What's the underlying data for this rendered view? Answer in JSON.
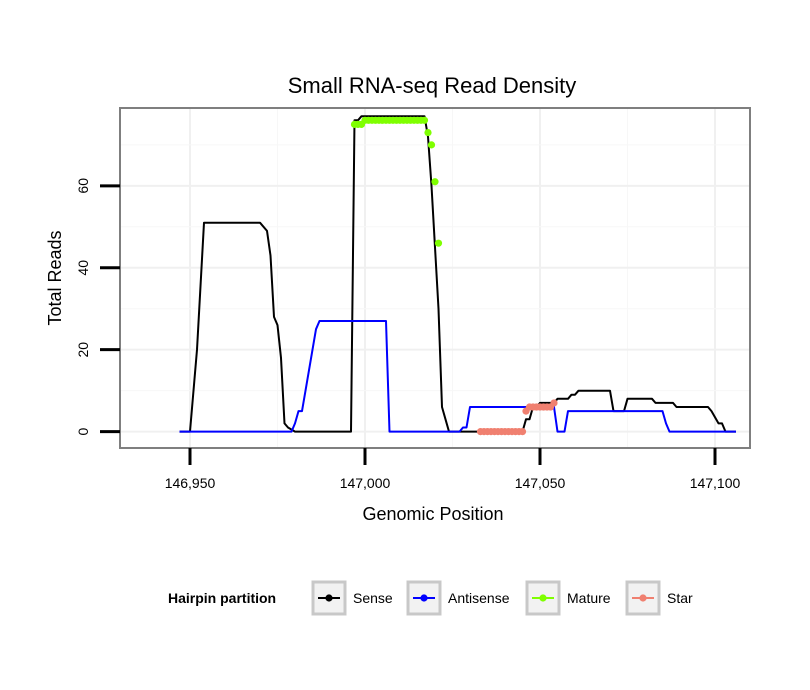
{
  "chart_data": {
    "type": "line",
    "title": "Small RNA-seq Read Density",
    "xlabel": "Genomic Position",
    "ylabel": "Total Reads",
    "xlim": [
      146930,
      147110
    ],
    "ylim": [
      -4,
      79
    ],
    "x_ticks": [
      146950,
      147000,
      147050,
      147100
    ],
    "x_tick_labels": [
      "146,950",
      "147,000",
      "147,050",
      "147,100"
    ],
    "y_ticks": [
      0,
      20,
      40,
      60
    ],
    "y_tick_labels": [
      "0",
      "20",
      "40",
      "60"
    ],
    "grid": true,
    "legend": {
      "title": "Hairpin partition",
      "placement": "bottom",
      "entries": [
        {
          "name": "Sense",
          "color": "#000000"
        },
        {
          "name": "Antisense",
          "color": "#0000ff"
        },
        {
          "name": "Mature",
          "color": "#7fff00"
        },
        {
          "name": "Star",
          "color": "#f08070"
        }
      ]
    },
    "series": [
      {
        "name": "Sense",
        "color": "#000000",
        "style": "line",
        "x": [
          146947,
          146950,
          146952,
          146954,
          146960,
          146970,
          146972,
          146973,
          146974,
          146975,
          146976,
          146977,
          146978,
          146980,
          146996,
          146997,
          146998,
          146999,
          147000,
          147017,
          147018,
          147019,
          147020,
          147021,
          147022,
          147023,
          147024,
          147025,
          147026,
          147030,
          147045,
          147046,
          147047,
          147048,
          147049,
          147050,
          147054,
          147055,
          147058,
          147059,
          147060,
          147061,
          147062,
          147070,
          147071,
          147072,
          147073,
          147074,
          147075,
          147082,
          147083,
          147088,
          147089,
          147098,
          147099,
          147101,
          147102,
          147103,
          147106
        ],
        "y": [
          0,
          0,
          20,
          51,
          51,
          51,
          49,
          43,
          28,
          26,
          18,
          2,
          1,
          0,
          0,
          76,
          76,
          77,
          77,
          77,
          72,
          60,
          45,
          30,
          6,
          3,
          0,
          0,
          0,
          0,
          0,
          3,
          3,
          6,
          6,
          7,
          7,
          8,
          8,
          9,
          9,
          10,
          10,
          10,
          5,
          5,
          5,
          5,
          8,
          8,
          7,
          7,
          6,
          6,
          5,
          2,
          2,
          0,
          0
        ]
      },
      {
        "name": "Antisense",
        "color": "#0000ff",
        "style": "line",
        "x": [
          146947,
          146979,
          146980,
          146981,
          146982,
          146983,
          146984,
          146985,
          146986,
          146987,
          146988,
          147006,
          147007,
          147008,
          147027,
          147028,
          147029,
          147030,
          147031,
          147053,
          147054,
          147055,
          147056,
          147057,
          147058,
          147060,
          147085,
          147086,
          147087,
          147088,
          147106
        ],
        "y": [
          0,
          0,
          2,
          5,
          5,
          10,
          15,
          20,
          25,
          27,
          27,
          27,
          0,
          0,
          0,
          1,
          1,
          6,
          6,
          6,
          6,
          0,
          0,
          0,
          5,
          5,
          5,
          2,
          0,
          0,
          0
        ]
      },
      {
        "name": "Mature",
        "color": "#7fff00",
        "style": "points",
        "x": [
          146997,
          146998,
          146999,
          147000,
          147001,
          147002,
          147003,
          147004,
          147005,
          147006,
          147007,
          147008,
          147009,
          147010,
          147011,
          147012,
          147013,
          147014,
          147015,
          147016,
          147017,
          147018,
          147019,
          147020,
          147021
        ],
        "y": [
          75,
          75,
          75,
          76,
          76,
          76,
          76,
          76,
          76,
          76,
          76,
          76,
          76,
          76,
          76,
          76,
          76,
          76,
          76,
          76,
          76,
          73,
          70,
          61,
          46
        ]
      },
      {
        "name": "Star",
        "color": "#f08070",
        "style": "points",
        "x": [
          147033,
          147034,
          147035,
          147036,
          147037,
          147038,
          147039,
          147040,
          147041,
          147042,
          147043,
          147044,
          147045,
          147046,
          147047,
          147048,
          147049,
          147050,
          147051,
          147052,
          147053,
          147054
        ],
        "y": [
          0,
          0,
          0,
          0,
          0,
          0,
          0,
          0,
          0,
          0,
          0,
          0,
          0,
          5,
          6,
          6,
          6,
          6,
          6,
          6,
          6,
          7
        ]
      }
    ]
  }
}
